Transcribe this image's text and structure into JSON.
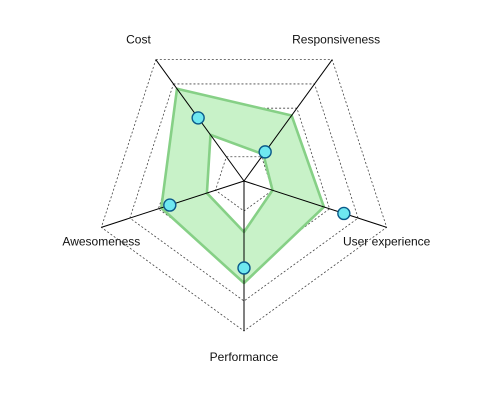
{
  "chart_data": {
    "type": "radar",
    "axes": [
      "Cost",
      "Responsiveness",
      "User experience",
      "Performance",
      "Awesomeness"
    ],
    "rlim": [
      0,
      5
    ],
    "grid_levels": [
      1,
      2,
      3,
      4,
      5
    ],
    "grid": "dashed",
    "series": [
      {
        "role": "band-outer",
        "values": [
          3.8,
          2.7,
          2.8,
          3.4,
          2.9
        ]
      },
      {
        "role": "band-inner",
        "values": [
          1.9,
          1.1,
          1.0,
          1.7,
          1.3
        ]
      },
      {
        "role": "markers",
        "values": [
          2.6,
          1.2,
          3.5,
          2.9,
          2.6
        ]
      }
    ],
    "colors": {
      "band_fill": "#c8f2c8",
      "band_stroke": "#86d086",
      "marker_fill": "#6ee8f0",
      "marker_stroke": "#0a5a8a",
      "axis": "#000000",
      "grid": "#444444"
    }
  }
}
